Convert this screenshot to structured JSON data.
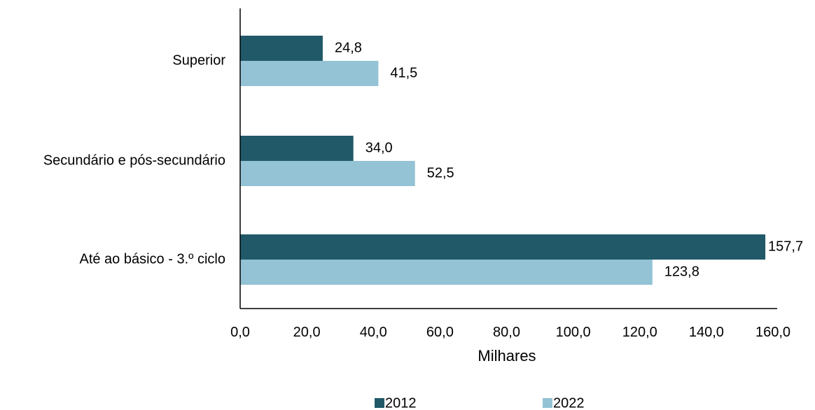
{
  "chart_data": {
    "type": "bar",
    "orientation": "horizontal",
    "categories": [
      "Superior",
      "Secundário e pós-secundário",
      "Até ao básico - 3.º ciclo"
    ],
    "series": [
      {
        "name": "2012",
        "values": [
          24.8,
          34.0,
          157.7
        ],
        "labels": [
          "24,8",
          "34,0",
          "157,7"
        ],
        "color": "#215968"
      },
      {
        "name": "2022",
        "values": [
          41.5,
          52.5,
          123.8
        ],
        "labels": [
          "41,5",
          "52,5",
          "123,8"
        ],
        "color": "#93C3D4"
      }
    ],
    "xlabel": "Milhares",
    "ylabel": "",
    "title": "",
    "xlim": [
      0,
      160
    ],
    "xticks": [
      0,
      20,
      40,
      60,
      80,
      100,
      120,
      140,
      160
    ],
    "xtick_labels": [
      "0,0",
      "20,0",
      "40,0",
      "60,0",
      "80,0",
      "100,0",
      "120,0",
      "140,0",
      "160,0"
    ],
    "grid": false,
    "legend_position": "bottom"
  }
}
